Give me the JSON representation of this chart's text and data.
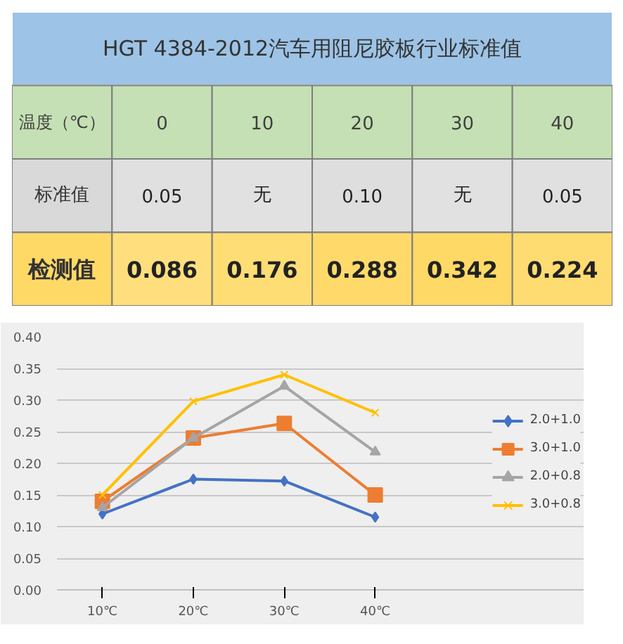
{
  "chart_data": [
    {
      "type": "heatmap",
      "title": "HGT 4384-2012汽车用阻尼胶板行业标准值",
      "xlabel": "温度（℃）",
      "categories": [
        "0",
        "10",
        "20",
        "30",
        "40"
      ],
      "y_categories": [
        "标准值",
        "检测值"
      ],
      "cells": [
        [
          0.05,
          null,
          0.1,
          null,
          0.05
        ],
        [
          0.086,
          0.176,
          0.288,
          0.342,
          0.224
        ]
      ],
      "cell_labels": [
        [
          "0.05",
          "无",
          "0.10",
          "无",
          "0.05"
        ],
        [
          "0.086",
          "0.176",
          "0.288",
          "0.342",
          "0.224"
        ]
      ]
    },
    {
      "type": "line",
      "categories": [
        "10℃",
        "20℃",
        "30℃",
        "40℃"
      ],
      "series": [
        {
          "name": "2.0+1.0",
          "color": "#4472c4",
          "marker": "diamond",
          "values": [
            0.12,
            0.175,
            0.172,
            0.115
          ]
        },
        {
          "name": "3.0+1.0",
          "color": "#ed7d31",
          "marker": "square",
          "values": [
            0.14,
            0.24,
            0.263,
            0.15
          ]
        },
        {
          "name": "2.0+0.8",
          "color": "#a5a5a5",
          "marker": "triangle",
          "values": [
            0.13,
            0.24,
            0.322,
            0.218
          ]
        },
        {
          "name": "3.0+0.8",
          "color": "#ffc000",
          "marker": "cross",
          "values": [
            0.15,
            0.298,
            0.34,
            0.28
          ]
        }
      ],
      "ylim": [
        0,
        0.4
      ],
      "yticks": [
        {
          "value": 0,
          "label": "0.00"
        },
        {
          "value": 0.05,
          "label": "0.05"
        },
        {
          "value": 0.1,
          "label": "0.10"
        },
        {
          "value": 0.15,
          "label": "0.15"
        },
        {
          "value": 0.2,
          "label": "0.20"
        },
        {
          "value": 0.25,
          "label": "0.25"
        },
        {
          "value": 0.3,
          "label": "0.30"
        },
        {
          "value": 0.35,
          "label": "0.35"
        },
        {
          "value": 0.4,
          "label": "0.40"
        }
      ],
      "grid": "y",
      "legend": "right",
      "line_style": "solid"
    }
  ]
}
